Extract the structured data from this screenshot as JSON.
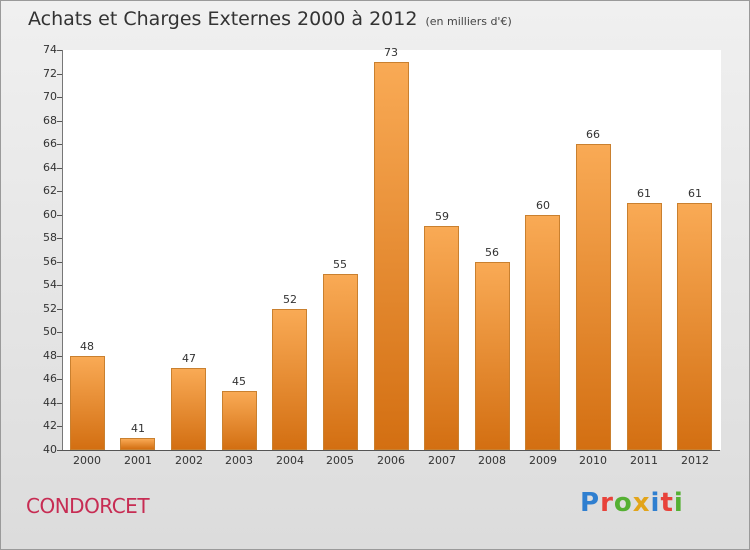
{
  "title": "Achats et Charges Externes 2000 à 2012",
  "unit": "(en milliers d'€)",
  "commune": "CONDORCET",
  "logo": "Proxiti",
  "colors": {
    "bar_top": "#f9aa55",
    "bar_bottom": "#d36f12",
    "commune_text": "#c72c53",
    "logo_letters": [
      "#2f7fd0",
      "#e8423a",
      "#55b033",
      "#e2a41a",
      "#2f7fd0",
      "#e8423a",
      "#55b033"
    ]
  },
  "chart_data": {
    "type": "bar",
    "title": "Achats et Charges Externes 2000 à 2012",
    "categories": [
      "2000",
      "2001",
      "2002",
      "2003",
      "2004",
      "2005",
      "2006",
      "2007",
      "2008",
      "2009",
      "2010",
      "2011",
      "2012"
    ],
    "values": [
      48,
      41,
      47,
      45,
      52,
      55,
      73,
      59,
      56,
      60,
      66,
      61,
      61
    ],
    "ylim": [
      40,
      74
    ],
    "yticks": [
      40,
      42,
      44,
      46,
      48,
      50,
      52,
      54,
      56,
      58,
      60,
      62,
      64,
      66,
      68,
      70,
      72,
      74
    ],
    "xlabel": "",
    "ylabel": "",
    "grid": false
  }
}
